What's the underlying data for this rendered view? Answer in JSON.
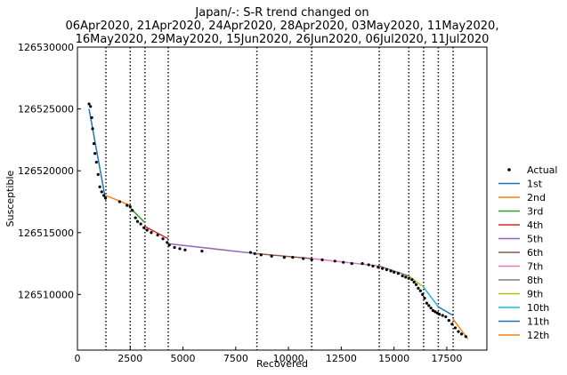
{
  "chart_data": {
    "type": "line",
    "title_lines": [
      "Japan/-: S-R trend changed on",
      "06Apr2020, 21Apr2020, 24Apr2020, 28Apr2020, 03May2020, 11May2020,",
      "16May2020, 29May2020, 15Jun2020, 26Jun2020, 06Jul2020, 11Jul2020"
    ],
    "xlabel": "Recovered",
    "ylabel": "Susceptible",
    "xlim": [
      0,
      19400
    ],
    "ylim": [
      126505500,
      126530000
    ],
    "x_ticks": [
      0,
      2500,
      5000,
      7500,
      10000,
      12500,
      15000,
      17500
    ],
    "x_tick_labels": [
      "0",
      "2500",
      "5000",
      "7500",
      "10000",
      "12500",
      "15000",
      "17500"
    ],
    "y_ticks": [
      126510000,
      126515000,
      126520000,
      126525000,
      126530000
    ],
    "y_tick_labels": [
      "126510000",
      "126515000",
      "126520000",
      "126525000",
      "126530000"
    ],
    "change_points_x": [
      1350,
      2500,
      3200,
      4300,
      8500,
      11100,
      14300,
      15700,
      16400,
      17100,
      17800
    ],
    "actual": {
      "name": "Actual",
      "x": [
        550,
        620,
        680,
        720,
        780,
        830,
        900,
        980,
        1060,
        1150,
        1250,
        1330,
        2000,
        2350,
        2500,
        2600,
        2750,
        2850,
        3000,
        3150,
        3300,
        3500,
        3800,
        4050,
        4250,
        4350,
        4600,
        4850,
        5100,
        5900,
        8200,
        8400,
        8700,
        9200,
        9800,
        10200,
        10700,
        11100,
        11600,
        12200,
        12600,
        13000,
        13500,
        13800,
        14000,
        14250,
        14450,
        14650,
        14850,
        15000,
        15200,
        15400,
        15550,
        15700,
        15850,
        15950,
        16050,
        16150,
        16250,
        16350,
        16450,
        16550,
        16650,
        16750,
        16850,
        16950,
        17050,
        17150,
        17300,
        17450,
        17600,
        17750,
        17900,
        18050,
        18200,
        18400
      ],
      "y": [
        126525400,
        126525200,
        126524300,
        126523400,
        126522200,
        126521400,
        126520700,
        126519700,
        126518700,
        126518300,
        126518000,
        126517800,
        126517500,
        126517200,
        126517100,
        126516800,
        126516200,
        126515900,
        126515700,
        126515400,
        126515200,
        126515000,
        126514800,
        126514500,
        126514200,
        126514000,
        126513800,
        126513700,
        126513600,
        126513500,
        126513400,
        126513300,
        126513200,
        126513100,
        126513000,
        126513000,
        126512900,
        126512800,
        126512800,
        126512700,
        126512600,
        126512500,
        126512500,
        126512400,
        126512300,
        126512200,
        126512100,
        126512000,
        126511900,
        126511800,
        126511700,
        126511500,
        126511400,
        126511300,
        126511200,
        126511000,
        126510800,
        126510500,
        126510300,
        126510000,
        126509700,
        126509300,
        126509100,
        126508900,
        126508700,
        126508600,
        126508500,
        126508400,
        126508300,
        126508200,
        126507900,
        126507600,
        126507300,
        126507000,
        126506800,
        126506600
      ]
    },
    "series": [
      {
        "name": "1st",
        "color": "#1f77b4",
        "x": [
          550,
          1350
        ],
        "y": [
          126525000,
          126517500
        ]
      },
      {
        "name": "2nd",
        "color": "#ff7f0e",
        "x": [
          1350,
          2500
        ],
        "y": [
          126518000,
          126517200
        ]
      },
      {
        "name": "3rd",
        "color": "#2ca02c",
        "x": [
          2500,
          3200
        ],
        "y": [
          126517000,
          126515800
        ]
      },
      {
        "name": "4th",
        "color": "#d62728",
        "x": [
          3200,
          4300
        ],
        "y": [
          126515500,
          126514500
        ]
      },
      {
        "name": "5th",
        "color": "#9467bd",
        "x": [
          4300,
          8500
        ],
        "y": [
          126514100,
          126513300
        ]
      },
      {
        "name": "6th",
        "color": "#8c564b",
        "x": [
          8500,
          11100
        ],
        "y": [
          126513300,
          126512900
        ]
      },
      {
        "name": "7th",
        "color": "#e377c2",
        "x": [
          11100,
          14300
        ],
        "y": [
          126512900,
          126512300
        ]
      },
      {
        "name": "8th",
        "color": "#7f7f7f",
        "x": [
          14300,
          15700
        ],
        "y": [
          126512300,
          126511500
        ]
      },
      {
        "name": "9th",
        "color": "#bcbd22",
        "x": [
          15700,
          16400
        ],
        "y": [
          126511500,
          126510600
        ]
      },
      {
        "name": "10th",
        "color": "#17becf",
        "x": [
          16400,
          17100
        ],
        "y": [
          126510600,
          126509000
        ]
      },
      {
        "name": "11th",
        "color": "#1f77b4",
        "x": [
          17100,
          17800
        ],
        "y": [
          126509000,
          126508300
        ]
      },
      {
        "name": "12th",
        "color": "#ff7f0e",
        "x": [
          17800,
          18500
        ],
        "y": [
          126508000,
          126506400
        ]
      }
    ],
    "legend_placement": "right-outside",
    "grid": false
  }
}
